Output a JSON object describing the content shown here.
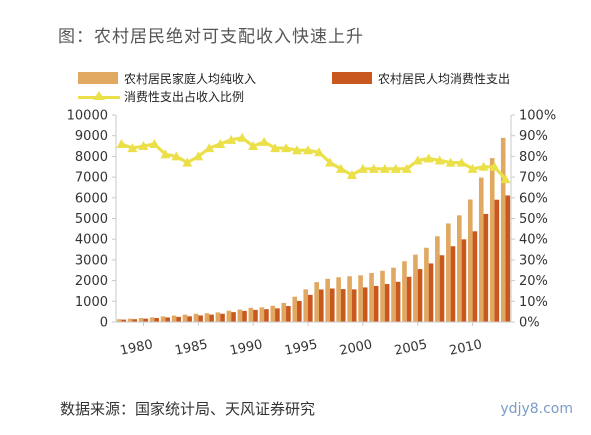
{
  "title": "图：农村居民绝对可支配收入快速上升",
  "source": "数据来源：国家统计局、天风证券研究",
  "watermark": "ydjy8.com",
  "colors": {
    "income": "#e0a860",
    "consumption": "#c9581f",
    "ratio": "#ece04a"
  },
  "chart_data": {
    "type": "bar",
    "title": "图：农村居民绝对可支配收入快速上升",
    "x": [
      1978,
      1979,
      1980,
      1981,
      1982,
      1983,
      1984,
      1985,
      1986,
      1987,
      1988,
      1989,
      1990,
      1991,
      1992,
      1993,
      1994,
      1995,
      1996,
      1997,
      1998,
      1999,
      2000,
      2001,
      2002,
      2003,
      2004,
      2005,
      2006,
      2007,
      2008,
      2009,
      2010,
      2011,
      2012,
      2013
    ],
    "x_ticks": [
      "1980",
      "1985",
      "1990",
      "1995",
      "2000",
      "2005",
      "2010"
    ],
    "series": [
      {
        "name": "农村居民家庭人均纯收入",
        "type": "bar",
        "axis": "left",
        "values": [
          134,
          160,
          191,
          223,
          270,
          310,
          355,
          398,
          424,
          463,
          545,
          602,
          686,
          709,
          784,
          922,
          1221,
          1578,
          1926,
          2090,
          2162,
          2210,
          2253,
          2366,
          2476,
          2622,
          2936,
          3255,
          3587,
          4140,
          4761,
          5153,
          5919,
          6977,
          7917,
          8896
        ]
      },
      {
        "name": "农村居民人均消费性支出",
        "type": "bar",
        "axis": "left",
        "values": [
          116,
          135,
          162,
          191,
          220,
          248,
          274,
          317,
          357,
          398,
          477,
          535,
          585,
          620,
          659,
          770,
          1017,
          1310,
          1572,
          1617,
          1590,
          1577,
          1670,
          1741,
          1834,
          1943,
          2185,
          2555,
          2829,
          3224,
          3661,
          3993,
          4382,
          5221,
          5908,
          6113
        ]
      },
      {
        "name": "消费性支出占收入比例",
        "type": "line",
        "axis": "right",
        "values": [
          0.86,
          0.84,
          0.85,
          0.86,
          0.81,
          0.8,
          0.77,
          0.8,
          0.84,
          0.86,
          0.88,
          0.89,
          0.85,
          0.87,
          0.84,
          0.84,
          0.83,
          0.83,
          0.82,
          0.77,
          0.74,
          0.71,
          0.74,
          0.74,
          0.74,
          0.74,
          0.74,
          0.78,
          0.79,
          0.78,
          0.77,
          0.77,
          0.74,
          0.75,
          0.75,
          0.69
        ]
      }
    ],
    "y_left": {
      "ylim": [
        0,
        10000
      ],
      "ticks": [
        "0",
        "1000",
        "2000",
        "3000",
        "4000",
        "5000",
        "6000",
        "7000",
        "8000",
        "9000",
        "10000"
      ]
    },
    "y_right": {
      "ylim": [
        0,
        1
      ],
      "ticks": [
        "0%",
        "10%",
        "20%",
        "30%",
        "40%",
        "50%",
        "60%",
        "70%",
        "80%",
        "90%",
        "100%"
      ]
    },
    "legend": [
      {
        "label": "农村居民家庭人均纯收入"
      },
      {
        "label": "农村居民人均消费性支出"
      },
      {
        "label": "消费性支出占收入比例"
      }
    ],
    "grid": false,
    "legend_position": "top"
  }
}
